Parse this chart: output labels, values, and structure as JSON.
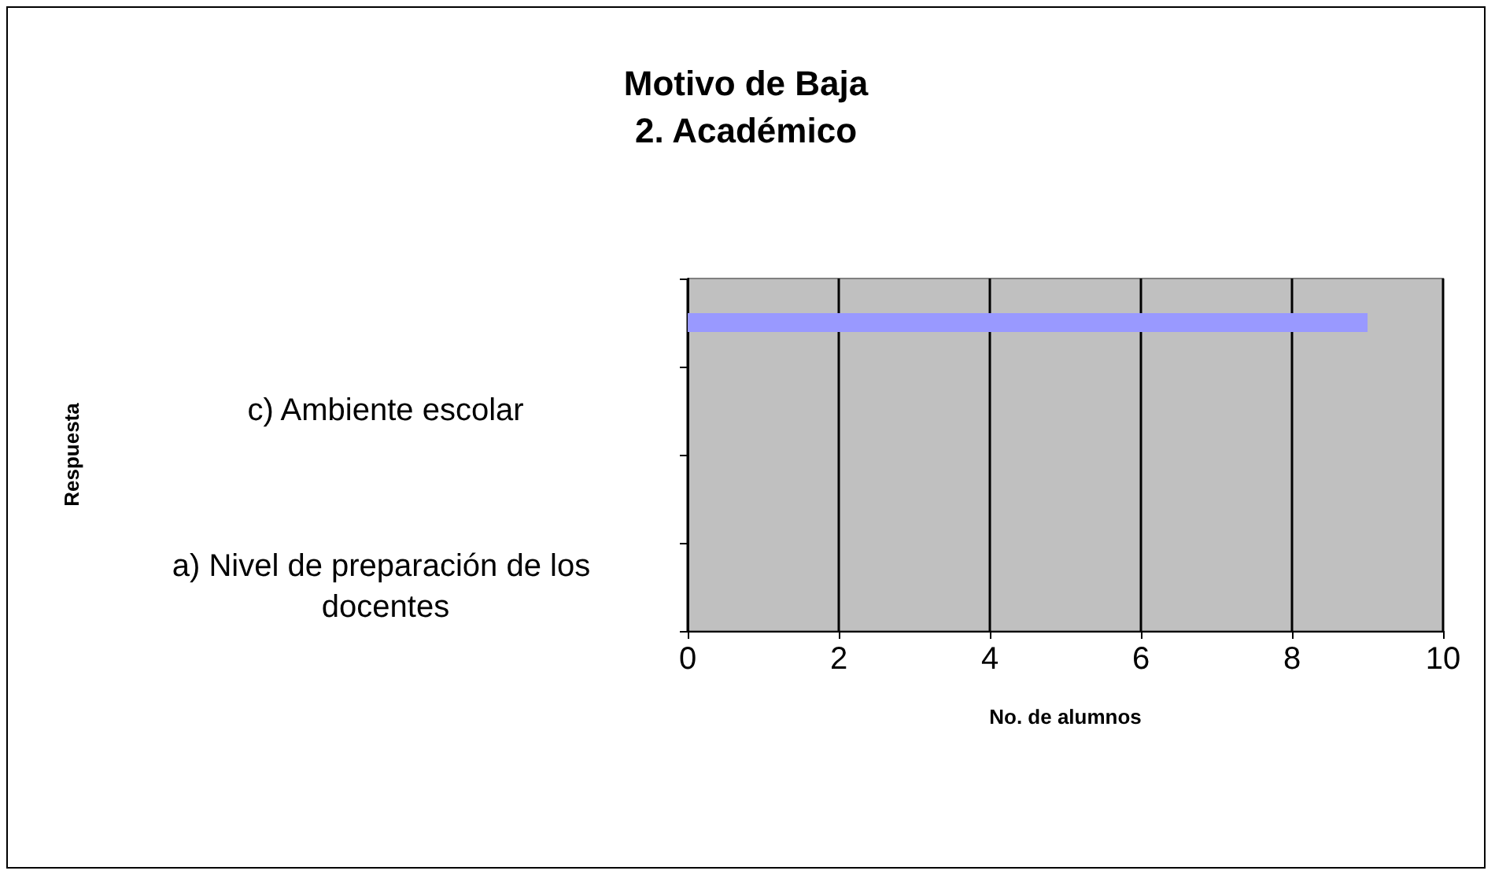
{
  "chart_data": {
    "type": "bar",
    "orientation": "horizontal",
    "title": "Motivo de Baja\n2. Académico",
    "xlabel": "No. de alumnos",
    "ylabel": "Respuesta",
    "categories": [
      null,
      "c) Ambiente escolar",
      null,
      "a) Nivel de preparación de los docentes"
    ],
    "values": [
      9,
      0,
      0,
      0
    ],
    "color": "#9999ff",
    "xlim": [
      0,
      10
    ],
    "xticks": [
      0,
      2,
      4,
      6,
      8,
      10
    ],
    "grid": "x"
  }
}
